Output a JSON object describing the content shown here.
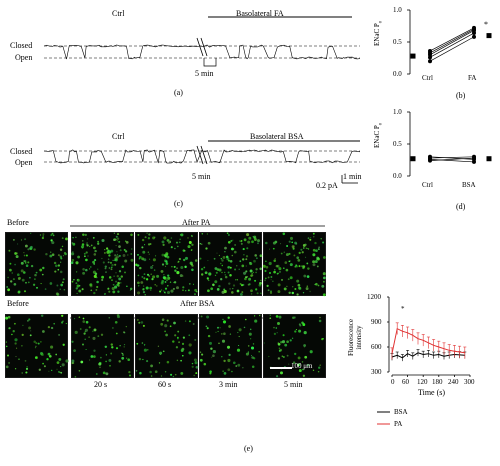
{
  "panel_a": {
    "label": "(a)",
    "closed": "Closed",
    "open": "Open",
    "ctrl": "Ctrl",
    "condition": "Basolateral FA",
    "break": "5 min"
  },
  "panel_b": {
    "label": "(b)",
    "ylabel": "ENaC P",
    "ysub": "o",
    "ticks": [
      "1.0",
      "0.5",
      "0.0"
    ],
    "categories": [
      "Ctrl",
      "FA"
    ],
    "star": "*"
  },
  "panel_c": {
    "label": "(c)",
    "closed": "Closed",
    "open": "Open",
    "ctrl": "Ctrl",
    "condition": "Basolateral BSA",
    "break": "5 min",
    "scale_time": "1 min",
    "scale_amp": "0.2 pA"
  },
  "panel_d": {
    "label": "(d)",
    "ylabel": "ENaC P",
    "ysub": "o",
    "ticks": [
      "1.0",
      "0.5",
      "0.0"
    ],
    "categories": [
      "Ctrl",
      "BSA"
    ]
  },
  "panel_e": {
    "label": "(e)",
    "before1": "Before",
    "after1": "After PA",
    "before2": "Before",
    "after2": "After BSA",
    "scale": "100 μm",
    "times": [
      "20 s",
      "60 s",
      "3 min",
      "5 min"
    ],
    "plot_ylabel1": "Fluorescence",
    "plot_ylabel2": "intensity",
    "plot_xlabel": "Time (s)",
    "plot_yticks": [
      "1200",
      "900",
      "600",
      "300"
    ],
    "plot_xticks": [
      "0",
      "60",
      "120",
      "180",
      "240",
      "300"
    ],
    "star": "*",
    "legend": [
      {
        "name": "BSA",
        "color": "#000000"
      },
      {
        "name": "PA",
        "color": "#e03030"
      }
    ]
  },
  "chart_data": [
    {
      "type": "scatter",
      "panel": "b",
      "ylabel": "ENaC Po",
      "ylim": [
        0,
        1
      ],
      "categories": [
        "Ctrl",
        "FA"
      ],
      "paired_values": [
        [
          0.2,
          0.58
        ],
        [
          0.26,
          0.64
        ],
        [
          0.3,
          0.68
        ],
        [
          0.33,
          0.7
        ],
        [
          0.36,
          0.72
        ]
      ],
      "mean_marker": {
        "Ctrl": 0.28,
        "FA": 0.6
      }
    },
    {
      "type": "scatter",
      "panel": "d",
      "ylabel": "ENaC Po",
      "ylim": [
        0,
        1
      ],
      "categories": [
        "Ctrl",
        "BSA"
      ],
      "paired_values": [
        [
          0.24,
          0.28
        ],
        [
          0.26,
          0.22
        ],
        [
          0.28,
          0.3
        ],
        [
          0.3,
          0.26
        ]
      ],
      "mean_marker": {
        "Ctrl": 0.27,
        "BSA": 0.27
      }
    },
    {
      "type": "line",
      "panel": "e",
      "xlabel": "Time (s)",
      "ylabel": "Fluorescence intensity",
      "xlim": [
        0,
        300
      ],
      "ylim": [
        300,
        1200
      ],
      "x": [
        0,
        20,
        40,
        60,
        80,
        100,
        120,
        140,
        160,
        180,
        200,
        220,
        240,
        260,
        280
      ],
      "series": [
        {
          "name": "BSA",
          "color": "#000000",
          "values": [
            480,
            500,
            470,
            520,
            490,
            530,
            510,
            520,
            500,
            510,
            490,
            500,
            510,
            505,
            500
          ]
        },
        {
          "name": "PA",
          "color": "#e03030",
          "values": [
            520,
            820,
            790,
            770,
            740,
            700,
            680,
            650,
            620,
            600,
            580,
            560,
            550,
            540,
            530
          ]
        }
      ]
    }
  ]
}
